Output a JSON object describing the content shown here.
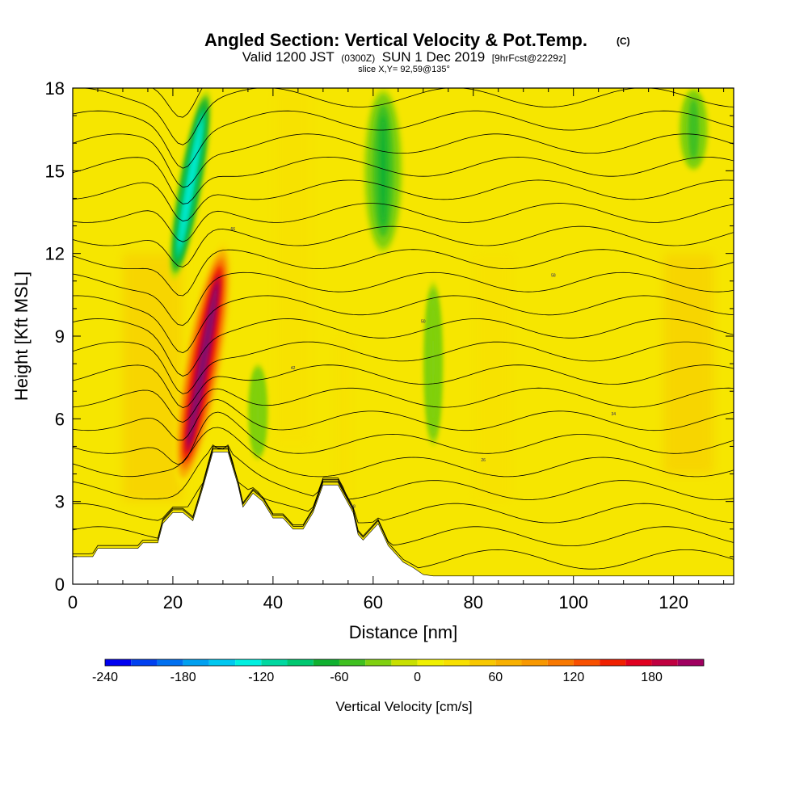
{
  "title": {
    "main": "Angled Section: Vertical Velocity & Pot.Temp.",
    "main_suffix": "(C)",
    "valid_prefix": "Valid 1200 JST",
    "valid_utc": "(0300Z)",
    "valid_date": "SUN 1 Dec 2019",
    "forecast": "[9hrFcst@2229z]",
    "slice": "slice X,Y= 92,59@135°"
  },
  "chart_data": {
    "type": "heatmap",
    "xlabel": "Distance [nm]",
    "ylabel": "Height [Kft MSL]",
    "xlim": [
      0,
      132
    ],
    "ylim": [
      0,
      18
    ],
    "x_ticks": [
      0,
      20,
      40,
      60,
      80,
      100,
      120
    ],
    "y_ticks": [
      0,
      3,
      6,
      9,
      12,
      15,
      18
    ],
    "colorbar": {
      "label": "Vertical Velocity [cm/s]",
      "range": [
        -240,
        220
      ],
      "labels": [
        -240,
        -180,
        -120,
        -60,
        0,
        60,
        120,
        180
      ],
      "colors": [
        "#0000f0",
        "#0040f0",
        "#0070f0",
        "#00a0f0",
        "#00c8f0",
        "#00f0e0",
        "#00d8a0",
        "#00c870",
        "#10b030",
        "#40c020",
        "#80d010",
        "#c8e000",
        "#f0f000",
        "#f8e000",
        "#f8c800",
        "#f8b000",
        "#f89800",
        "#f87800",
        "#f85000",
        "#f02000",
        "#e00020",
        "#c00040",
        "#a00060",
        "#801070",
        "#601080"
      ],
      "step": 20
    },
    "velocity_features": [
      {
        "kind": "updraft",
        "x_range": [
          22,
          30
        ],
        "z_range": [
          3.5,
          12.5
        ],
        "peak": 220
      },
      {
        "kind": "downdraft",
        "x_range": [
          21,
          26
        ],
        "z_range": [
          11,
          18
        ],
        "peak": -130
      },
      {
        "kind": "downdraft",
        "x_range": [
          58,
          66
        ],
        "z_range": [
          12,
          18
        ],
        "peak": -70
      },
      {
        "kind": "downdraft",
        "x_range": [
          35,
          39
        ],
        "z_range": [
          4.5,
          8
        ],
        "peak": -40
      },
      {
        "kind": "downdraft",
        "x_range": [
          70,
          74
        ],
        "z_range": [
          5,
          11
        ],
        "peak": -30
      },
      {
        "kind": "downdraft",
        "x_range": [
          121,
          127
        ],
        "z_range": [
          15,
          18
        ],
        "peak": -50
      }
    ],
    "isentropes_C": [
      -10,
      -6,
      -2,
      2,
      6,
      10,
      14,
      18,
      22,
      26,
      30,
      34,
      38,
      42,
      46,
      50,
      54,
      58,
      62,
      66,
      70,
      74
    ],
    "contour_labels": [
      "10",
      "14",
      "18",
      "22",
      "26",
      "30",
      "34",
      "38",
      "42",
      "46",
      "50",
      "54",
      "58",
      "62",
      "66",
      "70"
    ],
    "terrain": [
      {
        "x": 0,
        "z": 1.0
      },
      {
        "x": 4,
        "z": 1.0
      },
      {
        "x": 5,
        "z": 1.3
      },
      {
        "x": 13,
        "z": 1.3
      },
      {
        "x": 14,
        "z": 1.5
      },
      {
        "x": 17,
        "z": 1.5
      },
      {
        "x": 18,
        "z": 2.2
      },
      {
        "x": 20,
        "z": 2.6
      },
      {
        "x": 22,
        "z": 2.6
      },
      {
        "x": 24,
        "z": 2.3
      },
      {
        "x": 26,
        "z": 3.5
      },
      {
        "x": 28,
        "z": 4.8
      },
      {
        "x": 31,
        "z": 4.8
      },
      {
        "x": 33,
        "z": 3.6
      },
      {
        "x": 34,
        "z": 2.8
      },
      {
        "x": 36,
        "z": 3.3
      },
      {
        "x": 38,
        "z": 3.0
      },
      {
        "x": 40,
        "z": 2.4
      },
      {
        "x": 42,
        "z": 2.4
      },
      {
        "x": 44,
        "z": 2.0
      },
      {
        "x": 46,
        "z": 2.0
      },
      {
        "x": 48,
        "z": 2.6
      },
      {
        "x": 50,
        "z": 3.6
      },
      {
        "x": 53,
        "z": 3.6
      },
      {
        "x": 56,
        "z": 2.6
      },
      {
        "x": 57,
        "z": 1.8
      },
      {
        "x": 58,
        "z": 1.6
      },
      {
        "x": 60,
        "z": 2.0
      },
      {
        "x": 61,
        "z": 2.2
      },
      {
        "x": 63,
        "z": 1.4
      },
      {
        "x": 66,
        "z": 0.8
      },
      {
        "x": 68,
        "z": 0.6
      },
      {
        "x": 70,
        "z": 0.35
      },
      {
        "x": 72,
        "z": 0.3
      },
      {
        "x": 132,
        "z": 0.3
      }
    ]
  }
}
